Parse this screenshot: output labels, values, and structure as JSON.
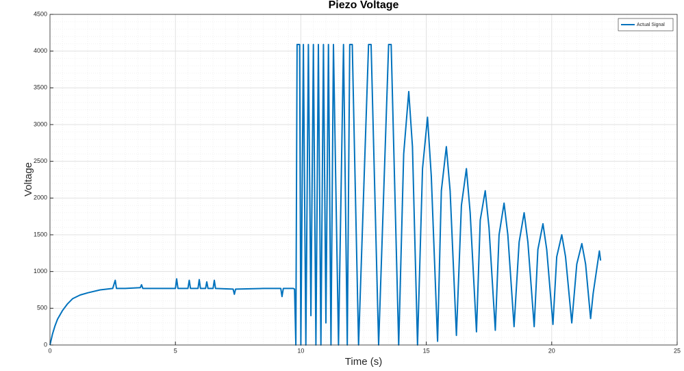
{
  "chart_data": {
    "type": "line",
    "title": "Piezo Voltage",
    "xlabel": "Time (s)",
    "ylabel": "Voltage",
    "xlim": [
      0,
      25
    ],
    "xticks": [
      0,
      5,
      10,
      15,
      20,
      25
    ],
    "ylim": [
      0,
      4500
    ],
    "yticks": [
      0,
      500,
      1000,
      1500,
      2000,
      2500,
      3000,
      3500,
      4000,
      4500
    ],
    "grid": true,
    "minor_grid": true,
    "legend": "northeast",
    "x": [
      0,
      0.1,
      0.2,
      0.3,
      0.5,
      0.7,
      0.9,
      1.2,
      1.5,
      2,
      2.5,
      2.6,
      2.65,
      3,
      3.6,
      3.65,
      3.7,
      4.5,
      5.0,
      5.05,
      5.1,
      5.5,
      5.55,
      5.6,
      5.9,
      5.95,
      6.0,
      6.2,
      6.25,
      6.3,
      6.5,
      6.55,
      6.6,
      7.3,
      7.35,
      7.4,
      8.5,
      9.2,
      9.25,
      9.3,
      9.7,
      9.75,
      9.8,
      9.85,
      9.95,
      10.0,
      10.1,
      10.2,
      10.3,
      10.4,
      10.5,
      10.6,
      10.7,
      10.8,
      10.9,
      11.0,
      11.1,
      11.2,
      11.3,
      11.5,
      11.7,
      11.85,
      11.95,
      12.05,
      12.3,
      12.7,
      12.8,
      13.1,
      13.5,
      13.6,
      13.9,
      14.1,
      14.3,
      14.45,
      14.65,
      14.85,
      15.05,
      15.2,
      15.45,
      15.6,
      15.8,
      15.95,
      16.2,
      16.4,
      16.6,
      16.75,
      17.0,
      17.15,
      17.35,
      17.5,
      17.75,
      17.9,
      18.1,
      18.25,
      18.5,
      18.7,
      18.9,
      19.05,
      19.3,
      19.45,
      19.65,
      19.8,
      20.05,
      20.2,
      20.4,
      20.55,
      20.8,
      21.0,
      21.2,
      21.35,
      21.55,
      21.65,
      21.9,
      21.95
    ],
    "series": [
      {
        "name": "Actual Signal",
        "color": "#0072bd",
        "values": [
          0,
          150,
          260,
          350,
          470,
          560,
          630,
          680,
          710,
          750,
          770,
          880,
          770,
          770,
          780,
          820,
          770,
          770,
          770,
          900,
          770,
          770,
          880,
          770,
          770,
          890,
          770,
          770,
          860,
          770,
          770,
          880,
          770,
          760,
          690,
          760,
          770,
          770,
          660,
          770,
          770,
          760,
          0,
          4090,
          4090,
          0,
          4090,
          0,
          4090,
          400,
          4090,
          0,
          4090,
          0,
          4090,
          300,
          4090,
          0,
          4090,
          0,
          4090,
          0,
          4090,
          4090,
          0,
          4090,
          4090,
          0,
          4090,
          4090,
          0,
          2600,
          3450,
          2700,
          0,
          2400,
          3100,
          2300,
          50,
          2100,
          2700,
          2100,
          130,
          1900,
          2400,
          1800,
          180,
          1700,
          2100,
          1600,
          200,
          1500,
          1930,
          1500,
          250,
          1400,
          1800,
          1400,
          250,
          1300,
          1650,
          1300,
          280,
          1200,
          1500,
          1200,
          300,
          1100,
          1380,
          1100,
          360,
          700,
          1280,
          1150
        ]
      }
    ]
  }
}
